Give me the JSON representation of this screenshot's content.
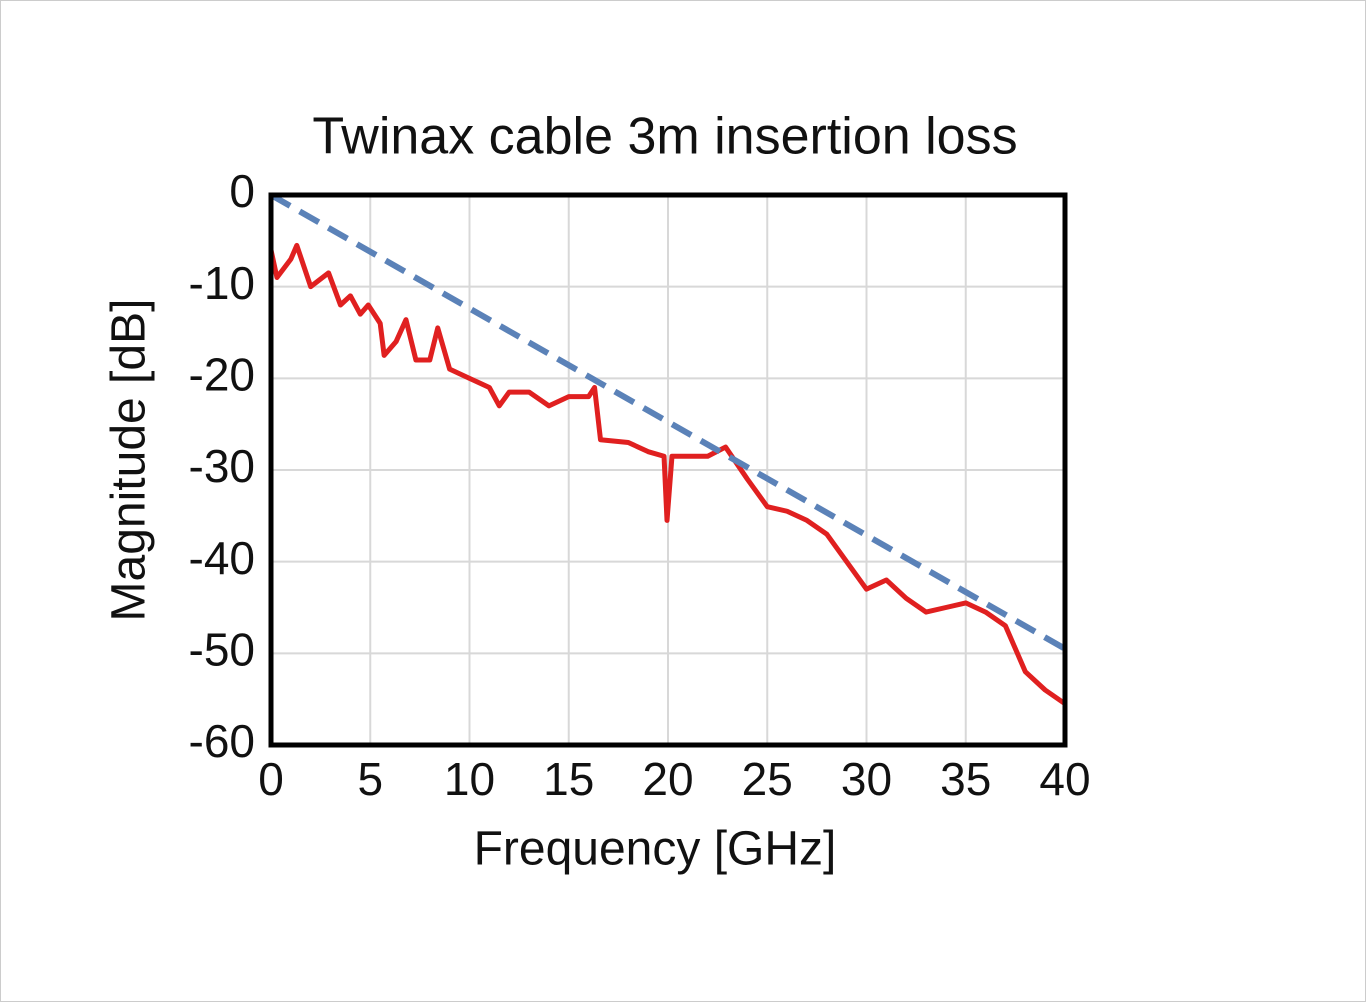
{
  "chart_data": {
    "type": "line",
    "title": "Twinax cable 3m insertion loss",
    "xlabel": "Frequency [GHz]",
    "ylabel": "Magnitude [dB]",
    "xlim": [
      0,
      40
    ],
    "xticks": [
      0,
      5,
      10,
      15,
      20,
      25,
      30,
      35,
      40
    ],
    "ylim": [
      -60,
      0
    ],
    "yticks": [
      0,
      -10,
      -20,
      -30,
      -40,
      -50,
      -60
    ],
    "grid": true,
    "series": [
      {
        "color": "#e02020",
        "style": "solid",
        "x": [
          0,
          0.3,
          1,
          1.3,
          2,
          2.9,
          3.5,
          4,
          4.5,
          4.9,
          5.5,
          5.7,
          6.3,
          6.8,
          7.3,
          8,
          8.4,
          9,
          10,
          11,
          11.5,
          12,
          13,
          14,
          15,
          16,
          16.3,
          16.6,
          18,
          19,
          19.8,
          19.95,
          20.2,
          22,
          22.9,
          24,
          25,
          26,
          27,
          28,
          29,
          30,
          31,
          32,
          33,
          34,
          35,
          36,
          37,
          38,
          39,
          40
        ],
        "values": [
          -6,
          -9,
          -7,
          -5.5,
          -10,
          -8.5,
          -12,
          -11,
          -13,
          -12,
          -14,
          -17.5,
          -16,
          -13.6,
          -18,
          -18,
          -14.5,
          -19,
          -20,
          -21,
          -23,
          -21.5,
          -21.5,
          -23,
          -22,
          -22,
          -21,
          -26.7,
          -27,
          -28,
          -28.5,
          -35.5,
          -28.5,
          -28.5,
          -27.5,
          -31,
          -34,
          -34.5,
          -35.5,
          -37,
          -40,
          -43,
          -42,
          -44,
          -45.5,
          -45,
          -44.5,
          -45.5,
          -47,
          -52,
          -54,
          -55.5
        ]
      },
      {
        "color": "#5b82b8",
        "style": "dashed",
        "x": [
          0,
          40
        ],
        "values": [
          0,
          -49.5
        ]
      }
    ]
  }
}
